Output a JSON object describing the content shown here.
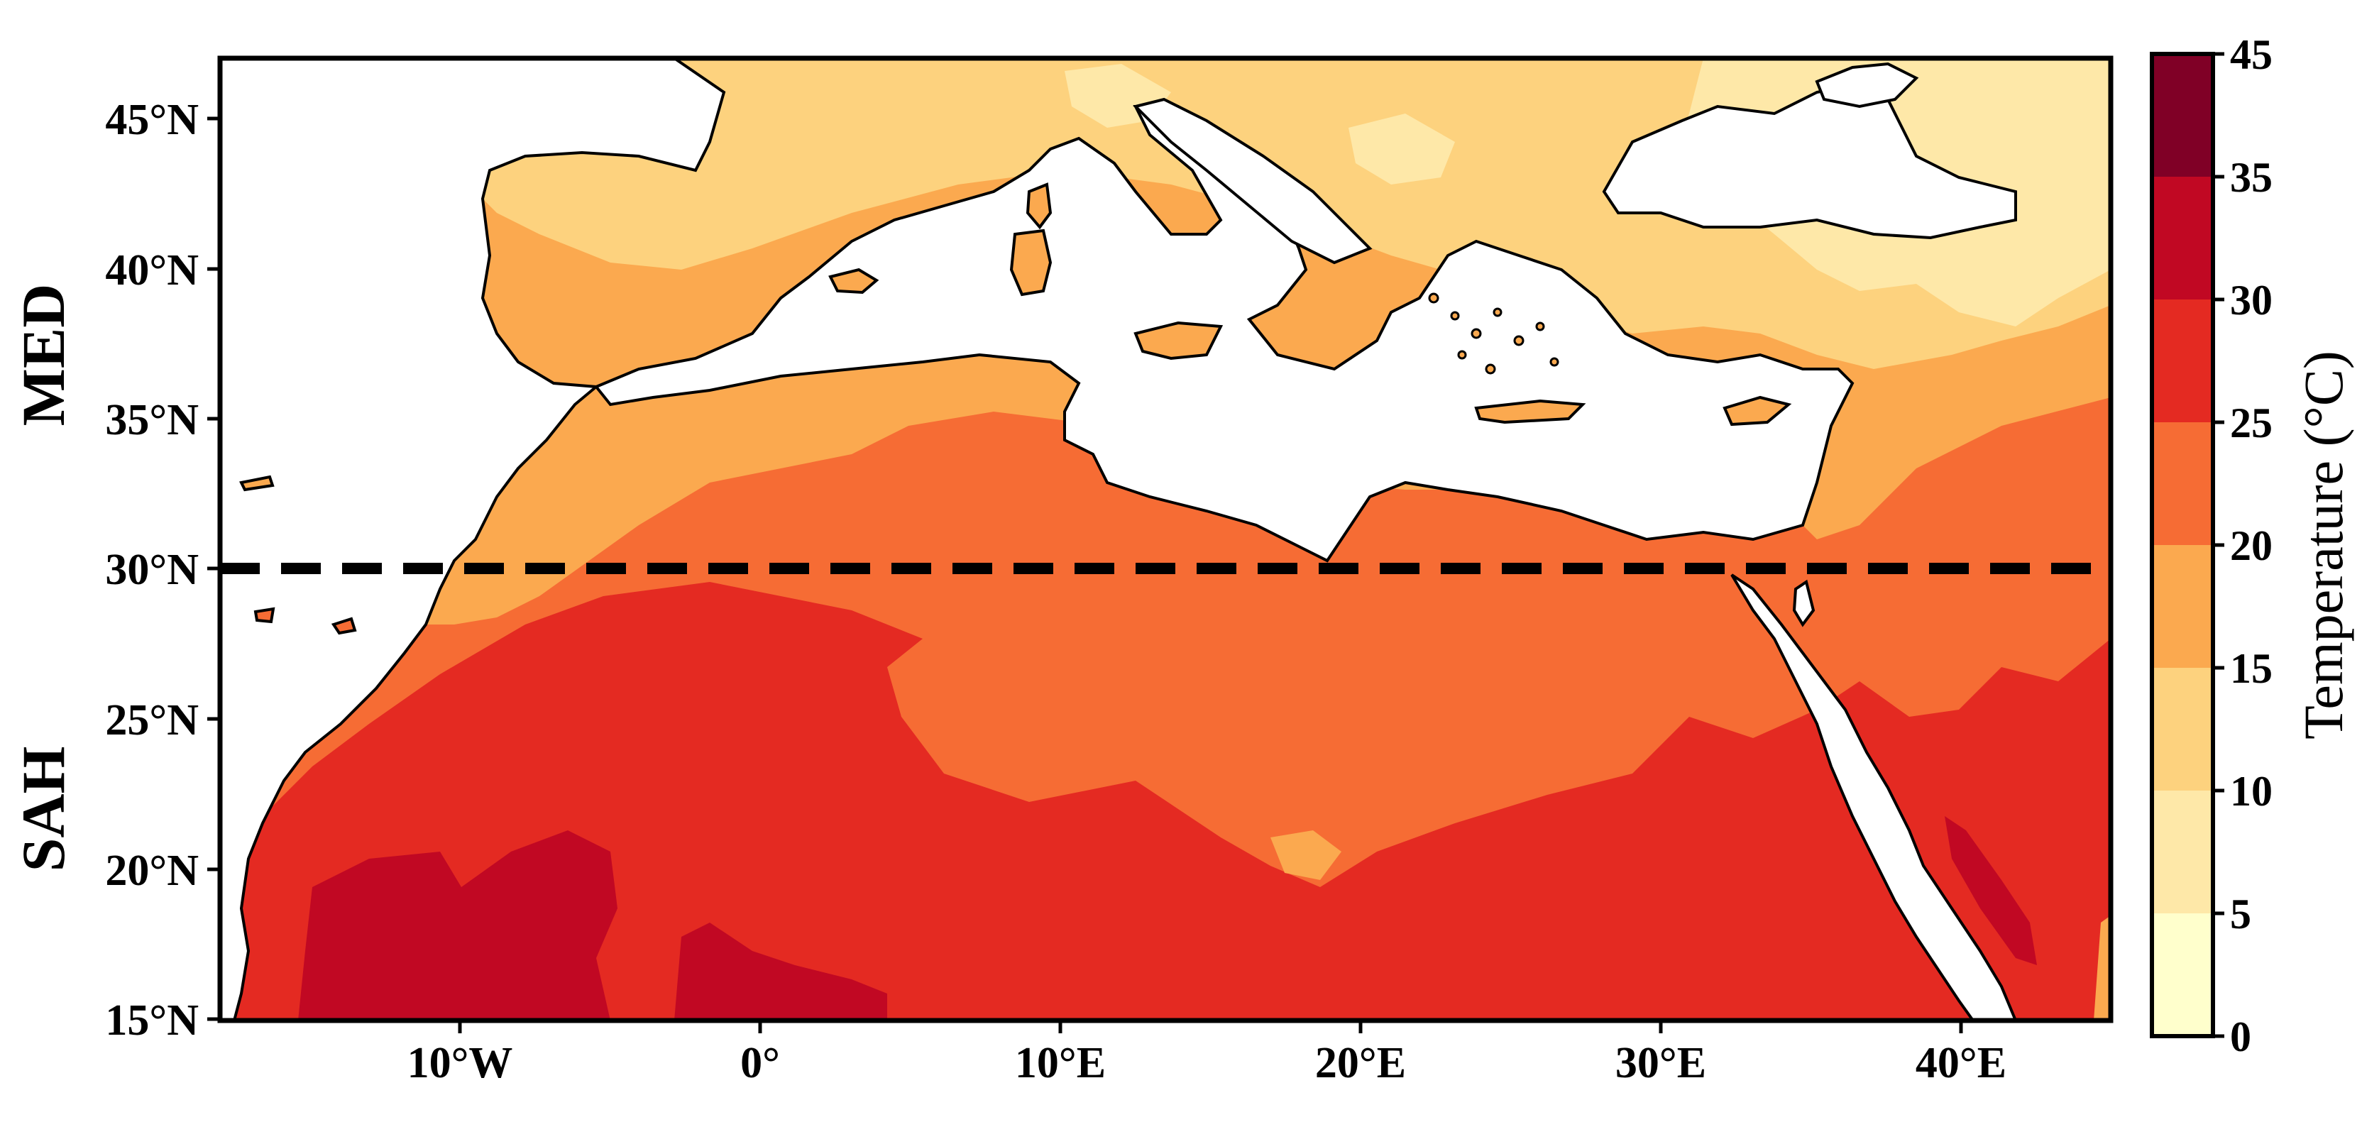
{
  "map": {
    "lat_ticks": [
      "45°N",
      "40°N",
      "35°N",
      "30°N",
      "25°N",
      "20°N",
      "15°N"
    ],
    "lon_ticks": [
      "10°W",
      "0°",
      "10°E",
      "20°E",
      "30°E",
      "40°E"
    ],
    "regions": {
      "north": "MED",
      "south": "SAH"
    },
    "divider_latitude": "30°N",
    "extent": {
      "lon_min": -18,
      "lon_max": 45,
      "lat_min": 15,
      "lat_max": 47
    },
    "land_colors": {
      "5-10": "#fee8a8",
      "10-15": "#fdd27e",
      "15-20": "#fba94f",
      "20-25": "#f66c34",
      "25-30": "#e42a22",
      "30-35": "#c10823",
      "35-45": "#800026",
      "sea": "#ffffff"
    }
  },
  "colorbar": {
    "title": "Temperature (°C)",
    "ticks": [
      "45",
      "35",
      "30",
      "25",
      "20",
      "15",
      "10",
      "5",
      "0"
    ],
    "bands": [
      "#ffffcc",
      "#fee8a8",
      "#fdd27e",
      "#fba94f",
      "#f66c34",
      "#e42a22",
      "#c10823",
      "#800026"
    ]
  }
}
